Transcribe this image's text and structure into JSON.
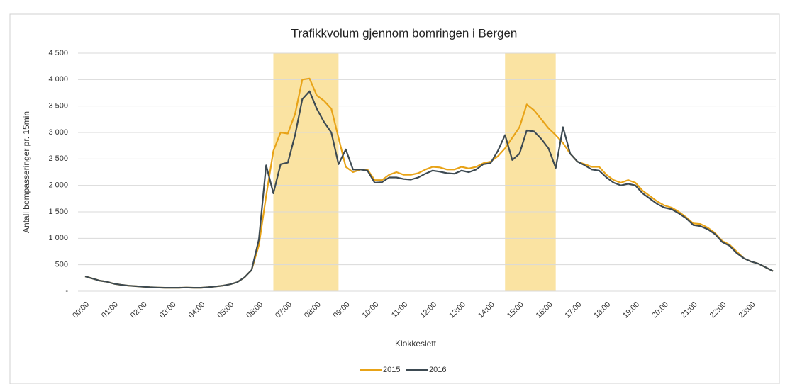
{
  "chart_data": {
    "type": "line",
    "title": "Trafikkvolum gjennom bomringen i Bergen",
    "x_label": "Klokkeslett",
    "y_label": "Antall bompasseringer pr. 15min",
    "categories": [
      "00:00",
      null,
      null,
      null,
      "01:00",
      null,
      null,
      null,
      "02:00",
      null,
      null,
      null,
      "03:00",
      null,
      null,
      null,
      "04:00",
      null,
      null,
      null,
      "05:00",
      null,
      null,
      null,
      "06:00",
      null,
      null,
      null,
      "07:00",
      null,
      null,
      null,
      "08:00",
      null,
      null,
      null,
      "09:00",
      null,
      null,
      null,
      "10:00",
      null,
      null,
      null,
      "11:00",
      null,
      null,
      null,
      "12:00",
      null,
      null,
      null,
      "13:00",
      null,
      null,
      null,
      "14:00",
      null,
      null,
      null,
      "15:00",
      null,
      null,
      null,
      "16:00",
      null,
      null,
      null,
      "17:00",
      null,
      null,
      null,
      "18:00",
      null,
      null,
      null,
      "19:00",
      null,
      null,
      null,
      "20:00",
      null,
      null,
      null,
      "21:00",
      null,
      null,
      null,
      "22:00",
      null,
      null,
      null,
      "23:00",
      null,
      null,
      null
    ],
    "series": [
      {
        "name": "2015",
        "color": "#e8a317",
        "values": [
          280,
          240,
          200,
          180,
          140,
          120,
          105,
          95,
          85,
          75,
          70,
          65,
          65,
          65,
          70,
          65,
          65,
          75,
          90,
          105,
          130,
          170,
          260,
          400,
          870,
          1800,
          2650,
          3000,
          2980,
          3350,
          4000,
          4020,
          3700,
          3600,
          3450,
          2900,
          2350,
          2250,
          2300,
          2300,
          2100,
          2100,
          2200,
          2250,
          2200,
          2200,
          2230,
          2300,
          2350,
          2340,
          2300,
          2300,
          2350,
          2320,
          2350,
          2420,
          2450,
          2550,
          2700,
          2900,
          3100,
          3530,
          3420,
          3250,
          3080,
          2950,
          2800,
          2600,
          2450,
          2400,
          2350,
          2350,
          2200,
          2100,
          2050,
          2100,
          2050,
          1900,
          1800,
          1700,
          1620,
          1580,
          1500,
          1400,
          1280,
          1270,
          1200,
          1100,
          950,
          880,
          750,
          620,
          560,
          520,
          450,
          380
        ]
      },
      {
        "name": "2016",
        "color": "#3d4a52",
        "values": [
          280,
          240,
          200,
          180,
          140,
          120,
          105,
          95,
          85,
          75,
          70,
          65,
          65,
          65,
          70,
          65,
          65,
          75,
          90,
          105,
          130,
          170,
          260,
          400,
          980,
          2380,
          1850,
          2400,
          2430,
          2950,
          3630,
          3780,
          3450,
          3200,
          3000,
          2400,
          2680,
          2300,
          2300,
          2280,
          2050,
          2060,
          2150,
          2150,
          2120,
          2110,
          2150,
          2220,
          2280,
          2260,
          2230,
          2220,
          2280,
          2250,
          2300,
          2400,
          2420,
          2650,
          2950,
          2480,
          2600,
          3040,
          3020,
          2880,
          2700,
          2330,
          3100,
          2600,
          2450,
          2380,
          2300,
          2280,
          2150,
          2050,
          2000,
          2030,
          2000,
          1850,
          1750,
          1650,
          1580,
          1550,
          1470,
          1380,
          1250,
          1230,
          1170,
          1080,
          930,
          860,
          720,
          620,
          560,
          520,
          450,
          380
        ]
      }
    ],
    "highlight_ranges": [
      [
        26,
        35
      ],
      [
        58,
        65
      ]
    ],
    "highlight_color": "#fae3a2",
    "ylim": [
      0,
      4500
    ],
    "yticks": [
      {
        "value": 0,
        "label": "-"
      },
      500,
      {
        "value": 1000,
        "label": "1 000"
      },
      {
        "value": 1500,
        "label": "1 500"
      },
      {
        "value": 2000,
        "label": "2 000"
      },
      {
        "value": 2500,
        "label": "2 500"
      },
      {
        "value": 3000,
        "label": "3 000"
      },
      {
        "value": 3500,
        "label": "3 500"
      },
      {
        "value": 4000,
        "label": "4 000"
      },
      {
        "value": 4500,
        "label": "4 500"
      }
    ],
    "grid": true
  }
}
